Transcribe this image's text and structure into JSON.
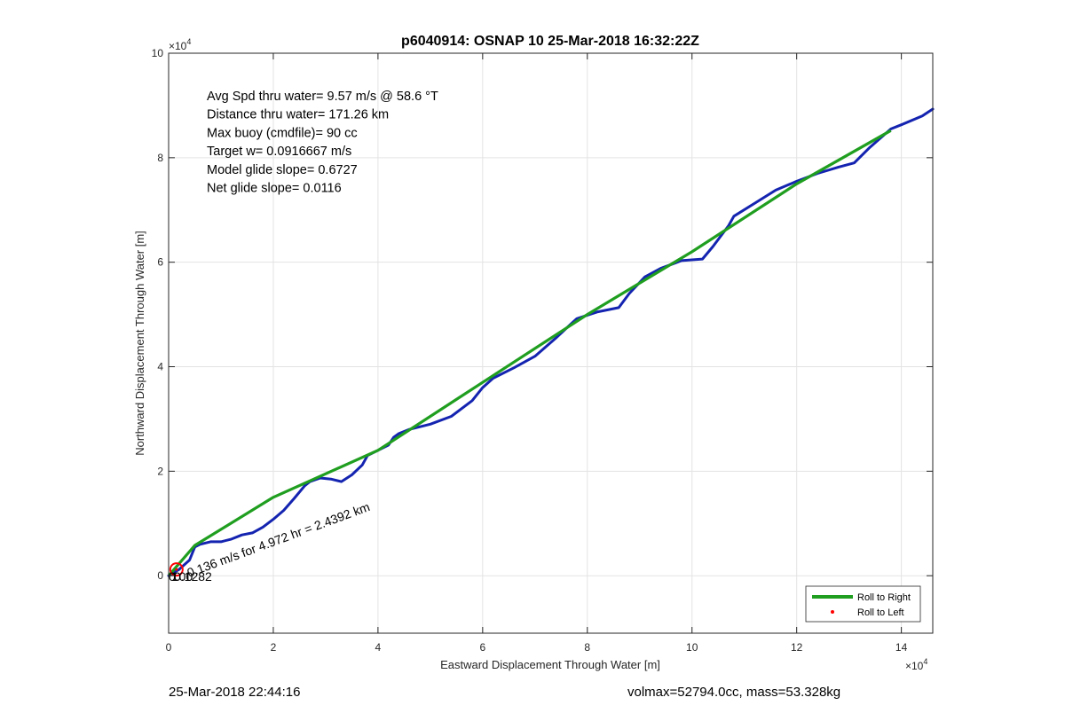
{
  "chart_data": {
    "type": "line",
    "title": "p6040914: OSNAP 10 25-Mar-2018 16:32:22Z",
    "xlabel": "Eastward Displacement Through Water [m]",
    "ylabel": "Northward Displacement Through Water [m]",
    "x_multiplier_label": "×10",
    "y_multiplier_label": "×10",
    "multiplier_exponent": "4",
    "xlim": [
      0,
      146000
    ],
    "ylim": [
      -11000,
      100000
    ],
    "xticks": [
      0,
      20000,
      40000,
      60000,
      80000,
      100000,
      120000,
      140000
    ],
    "xtick_labels": [
      "0",
      "2",
      "4",
      "6",
      "8",
      "10",
      "12",
      "14"
    ],
    "yticks": [
      0,
      20000,
      40000,
      60000,
      80000,
      100000
    ],
    "ytick_labels": [
      "0",
      "2",
      "4",
      "6",
      "8",
      "10"
    ],
    "grid": true,
    "legend_position": "bottom-right",
    "annotations": [
      "Avg Spd thru water=  9.57 m/s @  58.6 °T",
      "Distance thru water= 171.26 km",
      "Max buoy (cmdfile)= 90 cc",
      "Target w= 0.0916667 m/s",
      "Model glide slope= 0.6727",
      "Net glide slope= 0.0116"
    ],
    "overlap_label": "0.136 m/s for 4.972 hr = 2.4392 km",
    "start_labels": [
      "0.00",
      "1",
      "0.1282"
    ],
    "series": [
      {
        "name": "Roll to Right",
        "color": "#1f9e1f",
        "points": [
          [
            0,
            0
          ],
          [
            5000,
            5800
          ],
          [
            20000,
            15000
          ],
          [
            40000,
            24000
          ],
          [
            60000,
            37000
          ],
          [
            80000,
            50000
          ],
          [
            100000,
            62000
          ],
          [
            120000,
            75000
          ],
          [
            138000,
            85200
          ]
        ]
      },
      {
        "name": "Roll to Left",
        "color": "#ff0000",
        "points": [
          [
            1500,
            1200
          ]
        ]
      },
      {
        "name": "",
        "color": "#1424b0",
        "points": [
          [
            0,
            0
          ],
          [
            2000,
            1200
          ],
          [
            4000,
            3000
          ],
          [
            5000,
            5500
          ],
          [
            6000,
            6000
          ],
          [
            8000,
            6500
          ],
          [
            10000,
            6500
          ],
          [
            12000,
            7000
          ],
          [
            14000,
            7800
          ],
          [
            16000,
            8200
          ],
          [
            18000,
            9300
          ],
          [
            20000,
            10800
          ],
          [
            22000,
            12500
          ],
          [
            24000,
            14800
          ],
          [
            26000,
            17200
          ],
          [
            27000,
            18000
          ],
          [
            29000,
            18700
          ],
          [
            31000,
            18500
          ],
          [
            33000,
            18000
          ],
          [
            35000,
            19300
          ],
          [
            37000,
            21200
          ],
          [
            38000,
            23000
          ],
          [
            40000,
            24000
          ],
          [
            42000,
            25000
          ],
          [
            43000,
            26500
          ],
          [
            44000,
            27200
          ],
          [
            46000,
            28000
          ],
          [
            50000,
            29000
          ],
          [
            54000,
            30500
          ],
          [
            58000,
            33500
          ],
          [
            60000,
            36000
          ],
          [
            62000,
            37800
          ],
          [
            66000,
            39800
          ],
          [
            70000,
            42000
          ],
          [
            74000,
            45500
          ],
          [
            77000,
            48300
          ],
          [
            78000,
            49200
          ],
          [
            82000,
            50500
          ],
          [
            86000,
            51300
          ],
          [
            88000,
            54000
          ],
          [
            91000,
            57200
          ],
          [
            94000,
            58800
          ],
          [
            98000,
            60300
          ],
          [
            102000,
            60600
          ],
          [
            104000,
            63000
          ],
          [
            107000,
            67000
          ],
          [
            108000,
            68800
          ],
          [
            112000,
            71300
          ],
          [
            116000,
            73800
          ],
          [
            120000,
            75500
          ],
          [
            124000,
            77000
          ],
          [
            128000,
            78200
          ],
          [
            131000,
            79000
          ],
          [
            134000,
            82000
          ],
          [
            138000,
            85500
          ],
          [
            140000,
            86300
          ],
          [
            144000,
            88000
          ],
          [
            146000,
            89300
          ]
        ]
      }
    ]
  },
  "footer": {
    "left": "25-Mar-2018 22:44:16",
    "right": "volmax=52794.0cc, mass=53.328kg"
  }
}
